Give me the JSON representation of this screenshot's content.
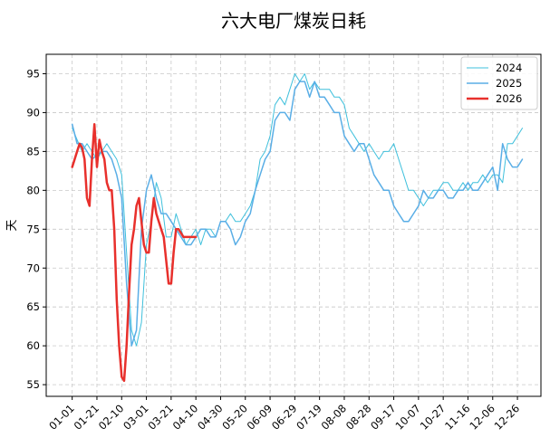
{
  "chart_data": {
    "type": "line",
    "title": "六大电厂煤炭日耗",
    "xlabel": "",
    "ylabel": "天",
    "x_tick_labels": [
      "01-01",
      "01-21",
      "02-10",
      "03-01",
      "03-21",
      "04-10",
      "04-30",
      "05-20",
      "06-09",
      "06-29",
      "07-19",
      "08-08",
      "08-28",
      "09-17",
      "10-07",
      "10-27",
      "11-16",
      "12-06",
      "12-26"
    ],
    "y_ticks": [
      55,
      60,
      65,
      70,
      75,
      80,
      85,
      90,
      95
    ],
    "xlim": [
      -21,
      379
    ],
    "ylim": [
      53.5,
      97.5
    ],
    "grid": true,
    "legend_position": "upper-right",
    "series": [
      {
        "name": "2024",
        "color": "#3fc0dc",
        "line_width": 1,
        "x": [
          0,
          4,
          8,
          12,
          16,
          20,
          24,
          28,
          32,
          36,
          40,
          44,
          48,
          52,
          56,
          60,
          64,
          68,
          72,
          76,
          80,
          84,
          88,
          92,
          96,
          100,
          104,
          108,
          112,
          116,
          120,
          124,
          128,
          132,
          136,
          140,
          144,
          148,
          152,
          156,
          160,
          164,
          168,
          172,
          176,
          180,
          184,
          188,
          192,
          196,
          200,
          204,
          208,
          212,
          216,
          220,
          224,
          228,
          232,
          236,
          240,
          244,
          248,
          252,
          256,
          260,
          264,
          268,
          272,
          276,
          280,
          284,
          288,
          292,
          296,
          300,
          304,
          308,
          312,
          316,
          320,
          324,
          328,
          332,
          336,
          340,
          344,
          348,
          352,
          356,
          360,
          364
        ],
        "y": [
          88,
          86.5,
          85,
          86,
          85,
          84,
          85,
          86,
          85,
          84,
          82,
          72,
          62,
          60,
          63,
          73,
          76,
          81,
          79,
          74,
          74,
          77,
          75,
          73,
          74,
          75,
          73,
          75,
          75,
          74,
          76,
          76,
          77,
          76,
          76,
          77,
          78,
          80,
          84,
          85,
          87,
          91,
          92,
          91,
          93,
          95,
          94,
          95,
          93,
          94,
          93,
          93,
          93,
          92,
          92,
          91,
          88,
          87,
          86,
          85,
          86,
          85,
          84,
          85,
          85,
          86,
          84,
          82,
          80,
          80,
          79,
          78,
          79,
          80,
          80,
          81,
          81,
          80,
          80,
          81,
          80,
          81,
          81,
          82,
          81,
          82,
          82,
          81,
          86,
          86,
          87,
          88
        ]
      },
      {
        "name": "2025",
        "color": "#5aaee6",
        "line_width": 1.5,
        "x": [
          0,
          4,
          8,
          12,
          16,
          20,
          24,
          28,
          32,
          36,
          40,
          44,
          48,
          52,
          56,
          60,
          64,
          68,
          72,
          76,
          80,
          84,
          88,
          92,
          96,
          100,
          104,
          108,
          112,
          116,
          120,
          124,
          128,
          132,
          136,
          140,
          144,
          148,
          152,
          156,
          160,
          164,
          168,
          172,
          176,
          180,
          184,
          188,
          192,
          196,
          200,
          204,
          208,
          212,
          216,
          220,
          224,
          228,
          232,
          236,
          240,
          244,
          248,
          252,
          256,
          260,
          264,
          268,
          272,
          276,
          280,
          284,
          288,
          292,
          296,
          300,
          304,
          308,
          312,
          316,
          320,
          324,
          328,
          332,
          336,
          340,
          344,
          348,
          352,
          356,
          360,
          364
        ],
        "y": [
          88.5,
          86,
          86,
          85,
          84,
          84.5,
          85,
          85,
          84,
          82,
          79,
          68,
          60,
          62,
          75,
          80,
          82,
          79,
          77,
          77,
          76,
          75,
          74,
          73,
          73,
          74,
          75,
          75,
          74,
          74,
          76,
          76,
          75,
          73,
          74,
          76,
          77,
          80,
          82,
          84,
          85,
          89,
          90,
          90,
          89,
          93,
          94,
          94,
          92,
          94,
          92,
          92,
          91,
          90,
          90,
          87,
          86,
          85,
          86,
          86,
          84,
          82,
          81,
          80,
          80,
          78,
          77,
          76,
          76,
          77,
          78,
          80,
          79,
          79,
          80,
          80,
          79,
          79,
          80,
          80,
          81,
          80,
          80,
          81,
          82,
          83,
          80,
          86,
          84,
          83,
          83,
          84
        ]
      },
      {
        "name": "2026",
        "color": "#e8302c",
        "line_width": 2.5,
        "x": [
          0,
          2,
          4,
          6,
          8,
          10,
          12,
          14,
          16,
          18,
          20,
          22,
          24,
          26,
          28,
          30,
          32,
          34,
          36,
          38,
          40,
          42,
          44,
          46,
          48,
          50,
          52,
          54,
          56,
          58,
          60,
          62,
          64,
          66,
          68,
          70,
          72,
          74,
          76,
          78,
          80,
          82,
          84,
          86,
          88,
          90,
          92,
          94,
          96,
          98,
          100
        ],
        "y": [
          83,
          84,
          85,
          86,
          85.5,
          84,
          79,
          78,
          84,
          88.5,
          83,
          86.5,
          85,
          84,
          81,
          80,
          80,
          75,
          66,
          60,
          56,
          55.5,
          60,
          67,
          73,
          75,
          78,
          79,
          76,
          73,
          72,
          72,
          76,
          79,
          77,
          76,
          75,
          74,
          71,
          68,
          68,
          72,
          75,
          75,
          74.5,
          74,
          74,
          74,
          74,
          74,
          74
        ]
      }
    ]
  }
}
